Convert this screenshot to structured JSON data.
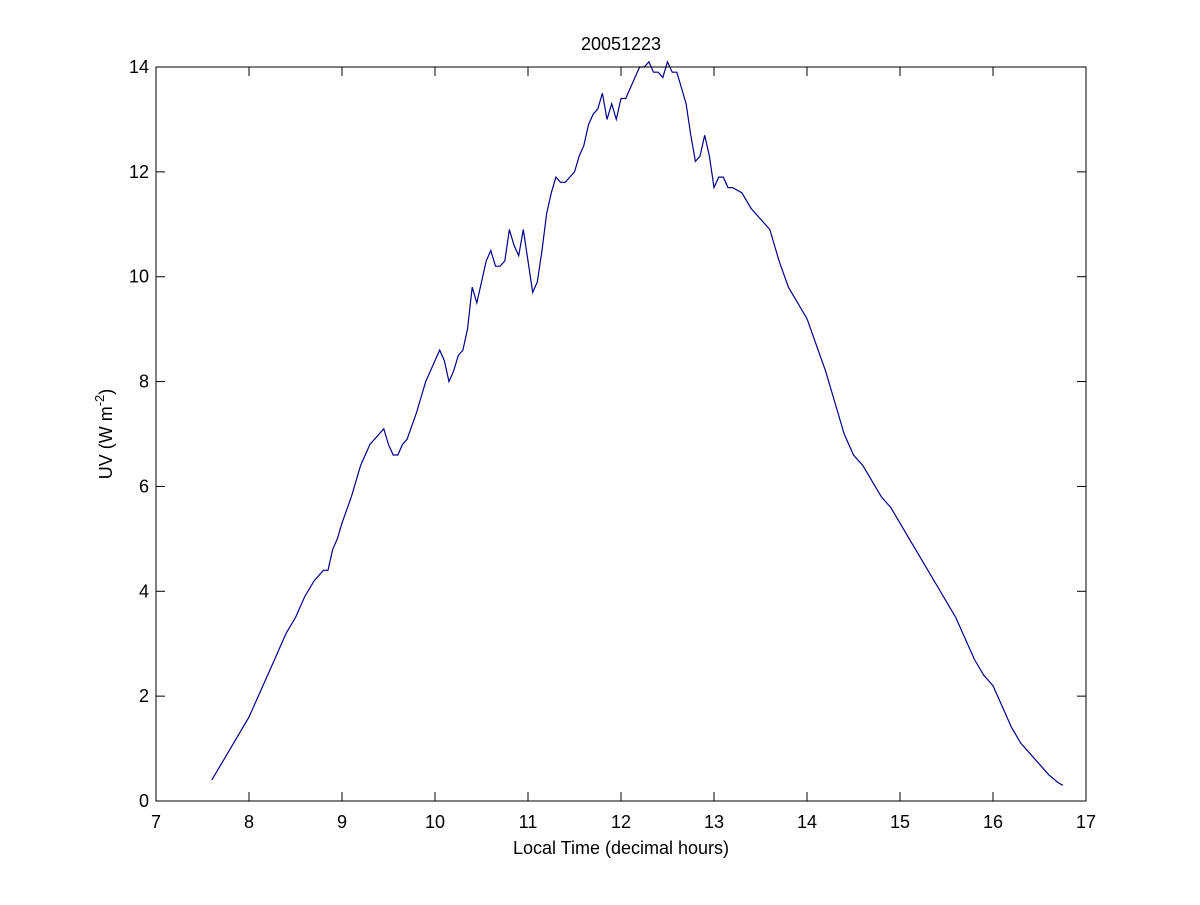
{
  "chart_data": {
    "type": "line",
    "title": "20051223",
    "xlabel": "Local Time (decimal hours)",
    "ylabel_main": "UV (W m",
    "ylabel_sup": "-2",
    "ylabel_close": ")",
    "xlim": [
      7,
      17
    ],
    "ylim": [
      0,
      14
    ],
    "xticks": [
      "7",
      "8",
      "9",
      "10",
      "11",
      "12",
      "13",
      "14",
      "15",
      "16",
      "17"
    ],
    "yticks": [
      "0",
      "2",
      "4",
      "6",
      "8",
      "10",
      "12",
      "14"
    ],
    "grid": false,
    "line_color": "#00008b",
    "series": [
      {
        "x": [
          7.6,
          7.7,
          7.8,
          7.9,
          8.0,
          8.1,
          8.2,
          8.3,
          8.35,
          8.4,
          8.5,
          8.6,
          8.7,
          8.8,
          8.85,
          8.9,
          8.95,
          9.0,
          9.1,
          9.2,
          9.3,
          9.4,
          9.45,
          9.5,
          9.55,
          9.6,
          9.65,
          9.7,
          9.8,
          9.9,
          10.0,
          10.05,
          10.1,
          10.15,
          10.2,
          10.25,
          10.3,
          10.35,
          10.4,
          10.45,
          10.5,
          10.55,
          10.6,
          10.65,
          10.7,
          10.75,
          10.8,
          10.85,
          10.9,
          10.95,
          11.0,
          11.05,
          11.1,
          11.15,
          11.2,
          11.25,
          11.3,
          11.35,
          11.4,
          11.45,
          11.5,
          11.55,
          11.6,
          11.65,
          11.7,
          11.75,
          11.8,
          11.85,
          11.9,
          11.95,
          12.0,
          12.05,
          12.1,
          12.15,
          12.2,
          12.25,
          12.3,
          12.35,
          12.4,
          12.45,
          12.5,
          12.55,
          12.6,
          12.65,
          12.7,
          12.75,
          12.8,
          12.85,
          12.9,
          12.95,
          13.0,
          13.05,
          13.1,
          13.15,
          13.2,
          13.3,
          13.4,
          13.5,
          13.6,
          13.7,
          13.8,
          13.9,
          14.0,
          14.1,
          14.2,
          14.3,
          14.4,
          14.5,
          14.6,
          14.7,
          14.8,
          14.9,
          15.0,
          15.1,
          15.2,
          15.3,
          15.4,
          15.5,
          15.6,
          15.7,
          15.8,
          15.9,
          16.0,
          16.1,
          16.2,
          16.3,
          16.4,
          16.5,
          16.6,
          16.7,
          16.75
        ],
        "y": [
          0.4,
          0.7,
          1.0,
          1.3,
          1.6,
          2.0,
          2.4,
          2.8,
          3.0,
          3.2,
          3.5,
          3.9,
          4.2,
          4.4,
          4.4,
          4.8,
          5.0,
          5.3,
          5.8,
          6.4,
          6.8,
          7.0,
          7.1,
          6.8,
          6.6,
          6.6,
          6.8,
          6.9,
          7.4,
          8.0,
          8.4,
          8.6,
          8.4,
          8.0,
          8.2,
          8.5,
          8.6,
          9.0,
          9.8,
          9.5,
          9.9,
          10.3,
          10.5,
          10.2,
          10.2,
          10.3,
          10.9,
          10.6,
          10.4,
          10.9,
          10.3,
          9.7,
          9.9,
          10.5,
          11.2,
          11.6,
          11.9,
          11.8,
          11.8,
          11.9,
          12.0,
          12.3,
          12.5,
          12.9,
          13.1,
          13.2,
          13.5,
          13.0,
          13.3,
          13.0,
          13.4,
          13.4,
          13.6,
          13.8,
          14.0,
          14.0,
          14.1,
          13.9,
          13.9,
          13.8,
          14.1,
          13.9,
          13.9,
          13.6,
          13.3,
          12.7,
          12.2,
          12.3,
          12.7,
          12.3,
          11.7,
          11.9,
          11.9,
          11.7,
          11.7,
          11.6,
          11.3,
          11.1,
          10.9,
          10.3,
          9.8,
          9.5,
          9.2,
          8.7,
          8.2,
          7.6,
          7.0,
          6.6,
          6.4,
          6.1,
          5.8,
          5.6,
          5.3,
          5.0,
          4.7,
          4.4,
          4.1,
          3.8,
          3.5,
          3.1,
          2.7,
          2.4,
          2.2,
          1.8,
          1.4,
          1.1,
          0.9,
          0.7,
          0.5,
          0.35,
          0.3
        ]
      }
    ]
  }
}
